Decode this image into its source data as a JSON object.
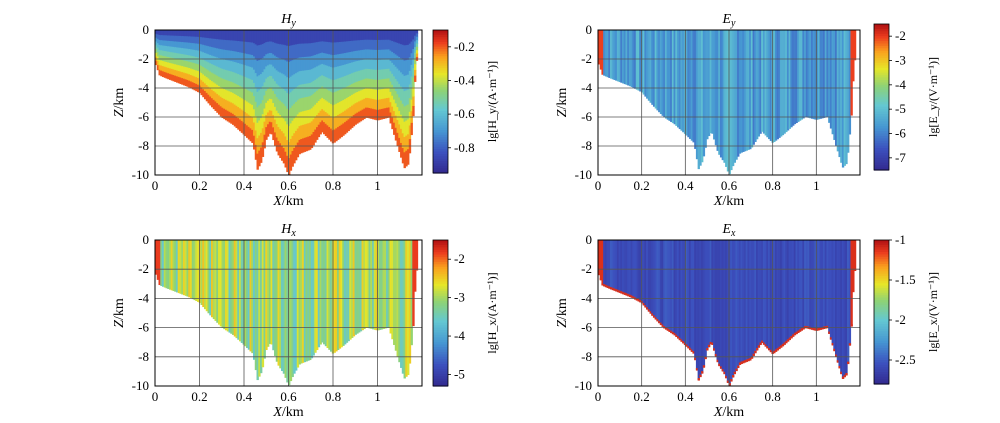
{
  "chart_data": [
    {
      "type": "heatmap",
      "title": "H",
      "title_sub": "y",
      "xlabel": "X/km",
      "ylabel": "Z/km",
      "xlim": [
        0,
        1.2
      ],
      "ylim": [
        -10,
        0
      ],
      "x_ticks": [
        "0",
        "0.2",
        "0.4",
        "0.6",
        "0.8",
        "1"
      ],
      "y_ticks": [
        "0",
        "-2",
        "-4",
        "-6",
        "-8",
        "-10"
      ],
      "grid": true,
      "colorbar": {
        "label": "lg[H_y/(A·m⁻¹)]",
        "range": [
          -0.95,
          -0.1
        ],
        "ticks": [
          "-0.2",
          "-0.4",
          "-0.6",
          "-0.8"
        ],
        "tick_values": [
          -0.2,
          -0.4,
          -0.6,
          -0.8
        ]
      },
      "pattern": "layered",
      "top_value": -0.9,
      "bottom_value": -0.15
    },
    {
      "type": "heatmap",
      "title": "E",
      "title_sub": "y",
      "xlabel": "X/km",
      "ylabel": "Z/km",
      "xlim": [
        0,
        1.2
      ],
      "ylim": [
        -10,
        0
      ],
      "x_ticks": [
        "0",
        "0.2",
        "0.4",
        "0.6",
        "0.8",
        "1"
      ],
      "y_ticks": [
        "0",
        "-2",
        "-4",
        "-6",
        "-8",
        "-10"
      ],
      "grid": true,
      "colorbar": {
        "label": "lg[E_y/(V·m⁻¹)]",
        "range": [
          -7.5,
          -1.5
        ],
        "ticks": [
          "-2",
          "-3",
          "-4",
          "-5",
          "-6",
          "-7"
        ],
        "tick_values": [
          -2,
          -3,
          -4,
          -5,
          -6,
          -7
        ]
      },
      "pattern": "streaks",
      "base_value": -5.5,
      "edge_value": -2
    },
    {
      "type": "heatmap",
      "title": "H",
      "title_sub": "x",
      "xlabel": "X/km",
      "ylabel": "Z/km",
      "xlim": [
        0,
        1.2
      ],
      "ylim": [
        -10,
        0
      ],
      "x_ticks": [
        "0",
        "0.2",
        "0.4",
        "0.6",
        "0.8",
        "1"
      ],
      "y_ticks": [
        "0",
        "-2",
        "-4",
        "-6",
        "-8",
        "-10"
      ],
      "grid": true,
      "colorbar": {
        "label": "lg[H_x/(A·m⁻¹)]",
        "range": [
          -5.3,
          -1.5
        ],
        "ticks": [
          "-2",
          "-3",
          "-4",
          "-5"
        ],
        "tick_values": [
          -2,
          -3,
          -4,
          -5
        ]
      },
      "pattern": "streaks",
      "base_value": -3.0,
      "edge_value": -1.8
    },
    {
      "type": "heatmap",
      "title": "E",
      "title_sub": "x",
      "xlabel": "X/km",
      "ylabel": "Z/km",
      "xlim": [
        0,
        1.2
      ],
      "ylim": [
        -10,
        0
      ],
      "x_ticks": [
        "0",
        "0.2",
        "0.4",
        "0.6",
        "0.8",
        "1"
      ],
      "y_ticks": [
        "0",
        "-2",
        "-4",
        "-6",
        "-8",
        "-10"
      ],
      "grid": true,
      "colorbar": {
        "label": "lg[E_x/(V·m⁻¹)]",
        "range": [
          -2.8,
          -1.0
        ],
        "ticks": [
          "-1",
          "-1.5",
          "-2",
          "-2.5"
        ],
        "tick_values": [
          -1,
          -1.5,
          -2,
          -2.5
        ]
      },
      "pattern": "uniform",
      "base_value": -2.55,
      "edge_value": -1.1
    }
  ],
  "profile": {
    "x": [
      0,
      0.02,
      0.05,
      0.1,
      0.15,
      0.2,
      0.25,
      0.3,
      0.35,
      0.4,
      0.44,
      0.46,
      0.48,
      0.5,
      0.52,
      0.55,
      0.58,
      0.6,
      0.62,
      0.65,
      0.7,
      0.75,
      0.8,
      0.85,
      0.9,
      0.95,
      1.0,
      1.05,
      1.1,
      1.12,
      1.14,
      1.16,
      1.17,
      1.18
    ],
    "z": [
      -2.2,
      -3.1,
      -3.3,
      -3.6,
      -3.9,
      -4.3,
      -5.2,
      -6.0,
      -6.5,
      -7.2,
      -7.8,
      -9.6,
      -9.0,
      -7.5,
      -7.0,
      -8.5,
      -9.2,
      -10.0,
      -9.3,
      -8.5,
      -8.2,
      -7.0,
      -7.8,
      -7.2,
      -6.5,
      -6.0,
      -6.2,
      -6.0,
      -8.5,
      -9.5,
      -9.2,
      -6.0,
      -3.0,
      -1.5
    ]
  }
}
